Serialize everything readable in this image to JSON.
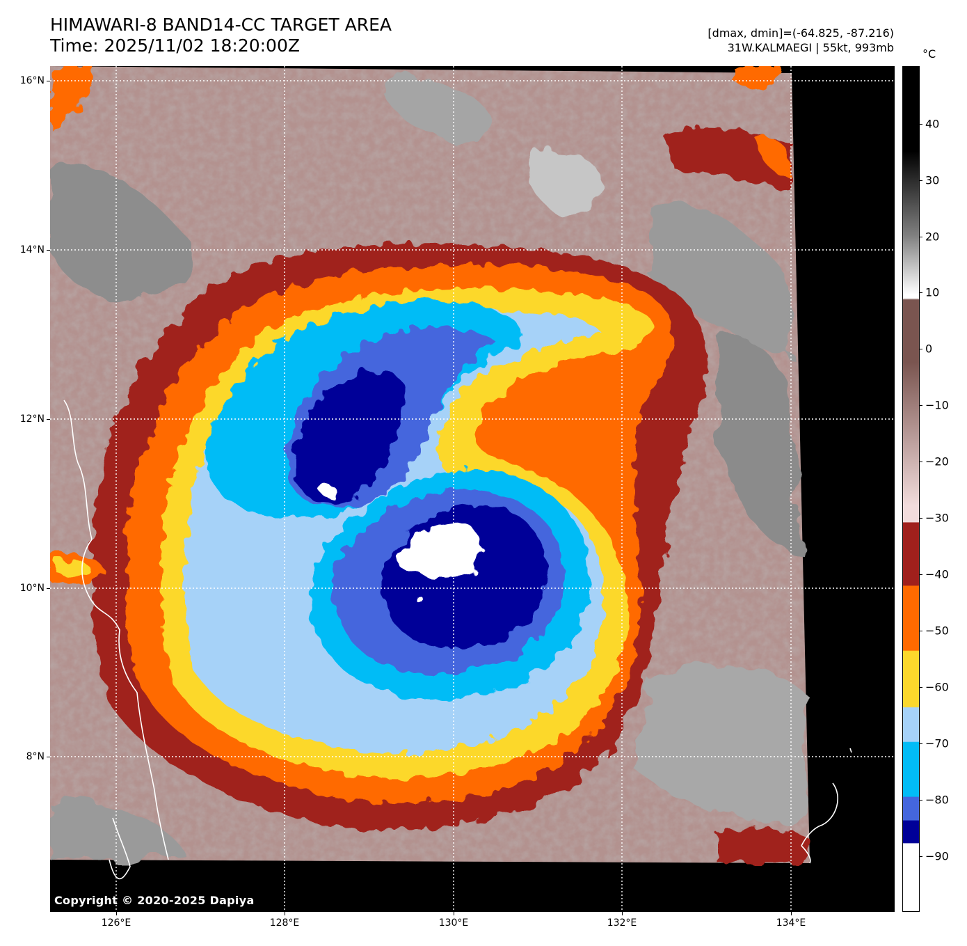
{
  "header": {
    "title_line1": "HIMAWARI-8 BAND14-CC TARGET AREA",
    "title_line2": "Time: 2025/11/02 18:20:00Z",
    "info_line1": "[dmax, dmin]=(-64.825, -87.216)",
    "info_line2": "31W.KALMAEGI | 55kt, 993mb"
  },
  "axes": {
    "lat_labels": [
      "16°N",
      "14°N",
      "12°N",
      "10°N",
      "8°N"
    ],
    "lon_labels": [
      "126°E",
      "128°E",
      "130°E",
      "132°E",
      "134°E"
    ]
  },
  "colorbar": {
    "unit": "°C",
    "labels": [
      "40",
      "30",
      "20",
      "10",
      "0",
      "−10",
      "−20",
      "−30",
      "−40",
      "−50",
      "−60",
      "−70",
      "−80",
      "−90"
    ],
    "colors": {
      "warm_black": "#000000",
      "grey": "#808080",
      "white": "#ffffff",
      "brown": "#7a5550",
      "pink": "#f2dcdc",
      "dark_red": "#a0201c",
      "orange": "#ff6a00",
      "yellow": "#fcd82c",
      "light_blue": "#a6d2f8",
      "cyan": "#02bcf6",
      "royal_blue": "#4466dd",
      "navy": "#000098",
      "cold_white": "#ffffff"
    }
  },
  "footer": {
    "copyright": "Copyright © 2020-2025 Dapiya"
  }
}
